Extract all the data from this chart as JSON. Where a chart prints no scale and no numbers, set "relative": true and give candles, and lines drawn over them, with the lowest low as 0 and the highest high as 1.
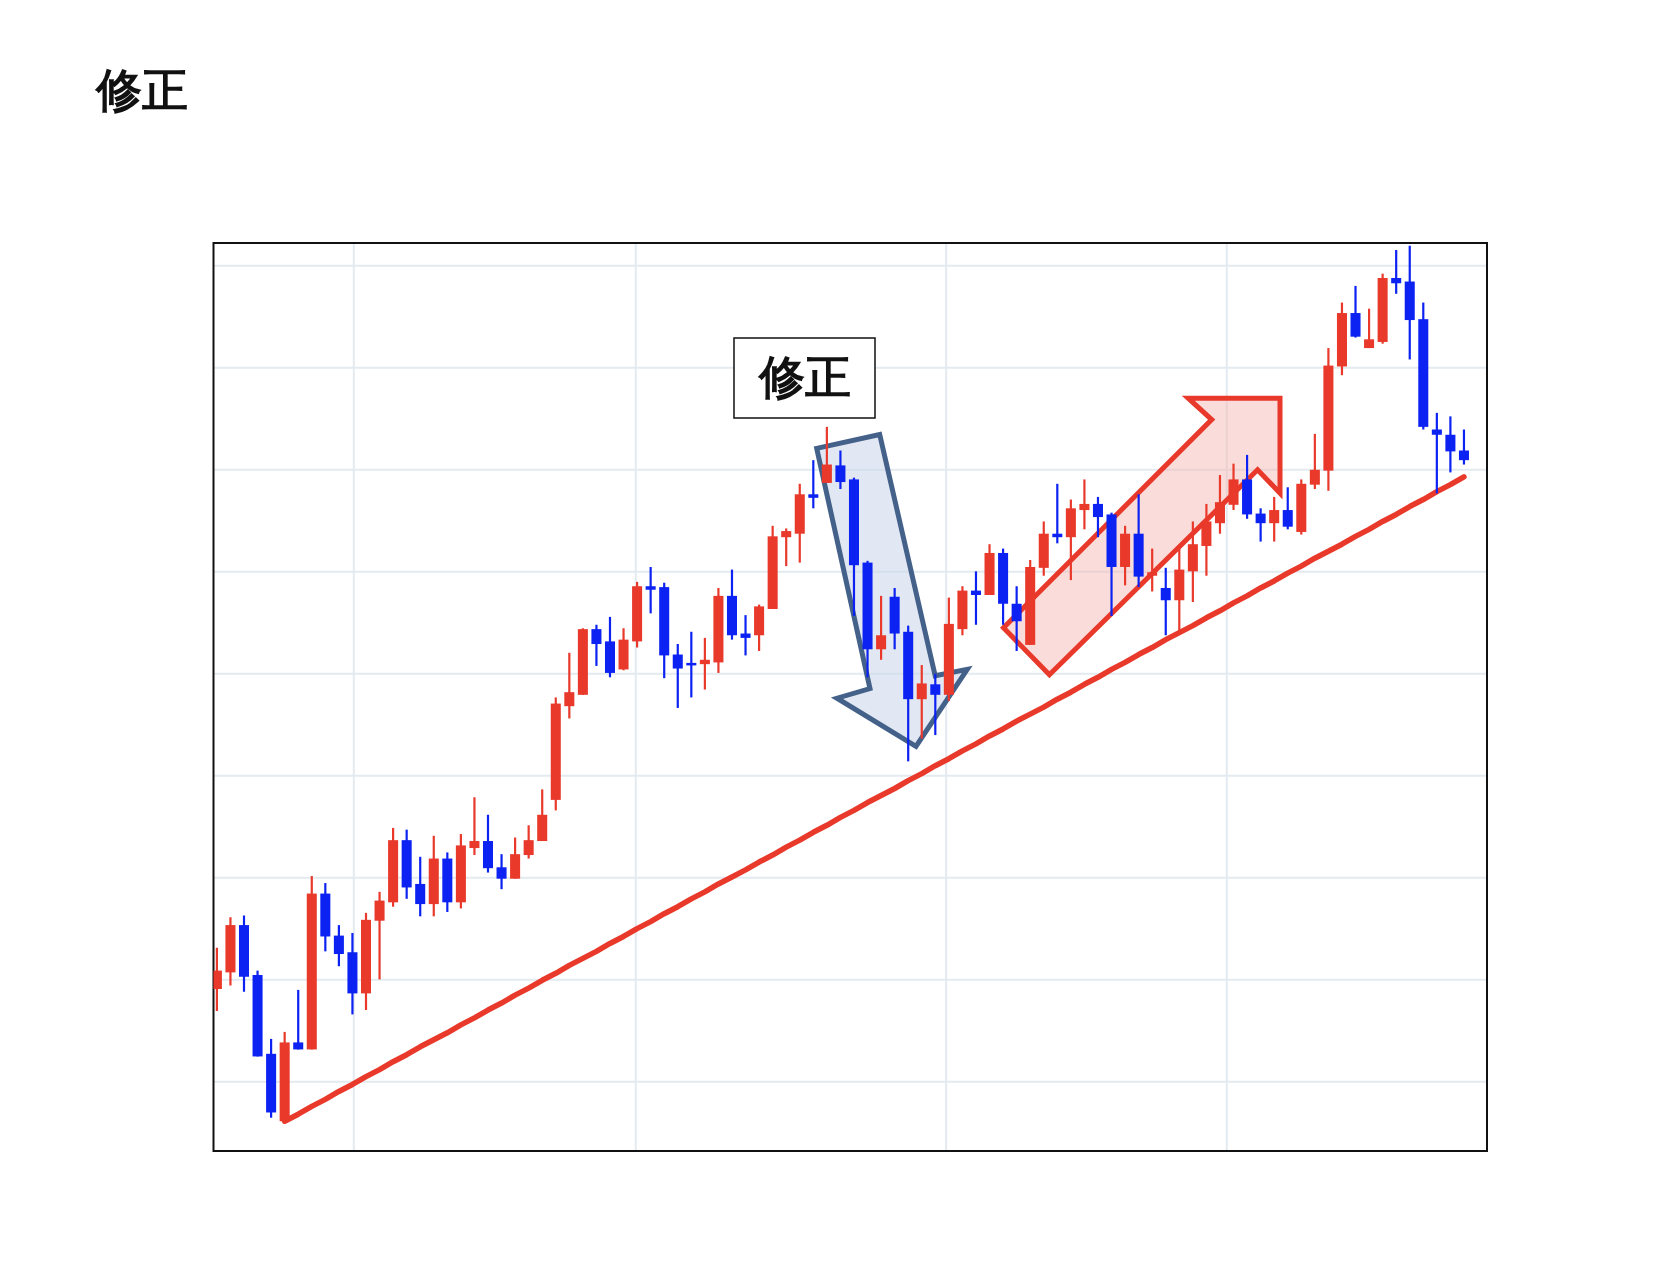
{
  "chart_data": {
    "type": "candlestick",
    "title": "修正",
    "relative": true,
    "grid": true,
    "annotations": [
      "修正"
    ],
    "categories": [
      null,
      null,
      null,
      null,
      null,
      null,
      null,
      null,
      null,
      null,
      null,
      null,
      null,
      null,
      null,
      null,
      null,
      null,
      null,
      null,
      null,
      null,
      null,
      null,
      null,
      null,
      null,
      null,
      null,
      null,
      null,
      null,
      null,
      null,
      null,
      null,
      null,
      null,
      null,
      null,
      null,
      null,
      null,
      null,
      null,
      null,
      null,
      null,
      null,
      null,
      null,
      null,
      null,
      null,
      null,
      null,
      null,
      null,
      null,
      null,
      null,
      null,
      null,
      null,
      null,
      null,
      null,
      null,
      null,
      null,
      null,
      null,
      null,
      null,
      null,
      null,
      null,
      null,
      null,
      null,
      null,
      null,
      null,
      null,
      null,
      null,
      null,
      null,
      null,
      null,
      null,
      null,
      null
    ],
    "ohlc": [
      [
        0.151,
        0.198,
        0.126,
        0.172
      ],
      [
        0.17,
        0.233,
        0.155,
        0.224
      ],
      [
        0.224,
        0.235,
        0.148,
        0.165
      ],
      [
        0.167,
        0.172,
        0.074,
        0.074
      ],
      [
        0.077,
        0.094,
        0.004,
        0.01
      ],
      [
        0,
        0.102,
        0,
        0.09
      ],
      [
        0.09,
        0.15,
        0.082,
        0.082
      ],
      [
        0.082,
        0.28,
        0.082,
        0.26
      ],
      [
        0.26,
        0.272,
        0.194,
        0.211
      ],
      [
        0.212,
        0.224,
        0.177,
        0.191
      ],
      [
        0.193,
        0.215,
        0.122,
        0.146
      ],
      [
        0.146,
        0.238,
        0.127,
        0.23
      ],
      [
        0.229,
        0.262,
        0.162,
        0.252
      ],
      [
        0.25,
        0.335,
        0.245,
        0.321
      ],
      [
        0.321,
        0.333,
        0.254,
        0.267
      ],
      [
        0.271,
        0.302,
        0.234,
        0.248
      ],
      [
        0.248,
        0.326,
        0.234,
        0.3
      ],
      [
        0.3,
        0.307,
        0.239,
        0.25
      ],
      [
        0.25,
        0.328,
        0.243,
        0.315
      ],
      [
        0.312,
        0.37,
        0.304,
        0.32
      ],
      [
        0.32,
        0.35,
        0.284,
        0.289
      ],
      [
        0.29,
        0.305,
        0.265,
        0.277
      ],
      [
        0.277,
        0.324,
        0.277,
        0.305
      ],
      [
        0.304,
        0.338,
        0.3,
        0.321
      ],
      [
        0.32,
        0.379,
        0.32,
        0.35
      ],
      [
        0.367,
        0.484,
        0.355,
        0.477
      ],
      [
        0.474,
        0.535,
        0.46,
        0.49
      ],
      [
        0.487,
        0.563,
        0.487,
        0.562
      ],
      [
        0.562,
        0.567,
        0.52,
        0.545
      ],
      [
        0.548,
        0.576,
        0.507,
        0.512
      ],
      [
        0.516,
        0.563,
        0.515,
        0.55
      ],
      [
        0.548,
        0.616,
        0.541,
        0.611
      ],
      [
        0.611,
        0.633,
        0.58,
        0.607
      ],
      [
        0.61,
        0.615,
        0.506,
        0.532
      ],
      [
        0.533,
        0.545,
        0.472,
        0.517
      ],
      [
        0.523,
        0.559,
        0.484,
        0.521
      ],
      [
        0.522,
        0.552,
        0.493,
        0.527
      ],
      [
        0.524,
        0.609,
        0.512,
        0.6
      ],
      [
        0.6,
        0.63,
        0.55,
        0.555
      ],
      [
        0.557,
        0.578,
        0.532,
        0.552
      ],
      [
        0.555,
        0.59,
        0.537,
        0.588
      ],
      [
        0.585,
        0.68,
        0.585,
        0.668
      ],
      [
        0.667,
        0.677,
        0.634,
        0.674
      ],
      [
        0.671,
        0.728,
        0.638,
        0.716
      ],
      [
        0.716,
        0.755,
        0.7,
        0.712
      ],
      [
        0.729,
        0.793,
        0.729,
        0.75
      ],
      [
        0.749,
        0.766,
        0.722,
        0.73
      ],
      [
        0.733,
        0.735,
        0.577,
        0.635
      ],
      [
        0.638,
        0.64,
        0.507,
        0.539
      ],
      [
        0.539,
        0.6,
        0.527,
        0.555
      ],
      [
        0.599,
        0.609,
        0.539,
        0.557
      ],
      [
        0.559,
        0.566,
        0.411,
        0.482
      ],
      [
        0.482,
        0.521,
        0.437,
        0.5
      ],
      [
        0.499,
        0.511,
        0.441,
        0.487
      ],
      [
        0.487,
        0.598,
        0.48,
        0.568
      ],
      [
        0.562,
        0.611,
        0.555,
        0.606
      ],
      [
        0.606,
        0.628,
        0.567,
        0.601
      ],
      [
        0.601,
        0.659,
        0.601,
        0.649
      ],
      [
        0.649,
        0.654,
        0.567,
        0.591
      ],
      [
        0.591,
        0.611,
        0.537,
        0.571
      ],
      [
        0.544,
        0.641,
        0.544,
        0.633
      ],
      [
        0.632,
        0.685,
        0.623,
        0.671
      ],
      [
        0.671,
        0.728,
        0.66,
        0.667
      ],
      [
        0.667,
        0.71,
        0.618,
        0.7
      ],
      [
        0.698,
        0.733,
        0.676,
        0.705
      ],
      [
        0.705,
        0.713,
        0.667,
        0.69
      ],
      [
        0.693,
        0.695,
        0.577,
        0.633
      ],
      [
        0.633,
        0.68,
        0.612,
        0.671
      ],
      [
        0.671,
        0.716,
        0.61,
        0.622
      ],
      [
        0.623,
        0.654,
        0.605,
        0.627
      ],
      [
        0.609,
        0.632,
        0.555,
        0.595
      ],
      [
        0.595,
        0.654,
        0.557,
        0.63
      ],
      [
        0.628,
        0.685,
        0.593,
        0.659
      ],
      [
        0.657,
        0.705,
        0.623,
        0.685
      ],
      [
        0.683,
        0.738,
        0.671,
        0.707
      ],
      [
        0.704,
        0.751,
        0.698,
        0.733
      ],
      [
        0.733,
        0.761,
        0.688,
        0.693
      ],
      [
        0.694,
        0.7,
        0.662,
        0.683
      ],
      [
        0.683,
        0.713,
        0.662,
        0.698
      ],
      [
        0.698,
        0.724,
        0.676,
        0.679
      ],
      [
        0.673,
        0.733,
        0.67,
        0.728
      ],
      [
        0.727,
        0.785,
        0.722,
        0.744
      ],
      [
        0.743,
        0.883,
        0.72,
        0.863
      ],
      [
        0.862,
        0.935,
        0.852,
        0.923
      ],
      [
        0.923,
        0.954,
        0.895,
        0.896
      ],
      [
        0.883,
        0.928,
        0.883,
        0.893
      ],
      [
        0.89,
        0.968,
        0.888,
        0.963
      ],
      [
        0.963,
        0.995,
        0.945,
        0.957
      ],
      [
        0.959,
        1,
        0.87,
        0.915
      ],
      [
        0.916,
        0.935,
        0.79,
        0.793
      ],
      [
        0.79,
        0.809,
        0.717,
        0.784
      ],
      [
        0.784,
        0.805,
        0.741,
        0.765
      ],
      [
        0.766,
        0.79,
        0.75,
        0.755
      ]
    ],
    "colors": [
      "#e8392b",
      "#e8392b",
      "#0b22f2",
      "#0b22f2",
      "#0b22f2",
      "#e8392b",
      "#0b22f2",
      "#e8392b",
      "#0b22f2",
      "#0b22f2",
      "#0b22f2",
      "#e8392b",
      "#e8392b",
      "#e8392b",
      "#0b22f2",
      "#0b22f2",
      "#e8392b",
      "#0b22f2",
      "#e8392b",
      "#e8392b",
      "#0b22f2",
      "#0b22f2",
      "#e8392b",
      "#e8392b",
      "#e8392b",
      "#e8392b",
      "#e8392b",
      "#e8392b",
      "#0b22f2",
      "#0b22f2",
      "#e8392b",
      "#e8392b",
      "#0b22f2",
      "#0b22f2",
      "#0b22f2",
      "#0b22f2",
      "#e8392b",
      "#e8392b",
      "#0b22f2",
      "#0b22f2",
      "#e8392b",
      "#e8392b",
      "#e8392b",
      "#e8392b",
      "#0b22f2",
      "#e8392b",
      "#0b22f2",
      "#0b22f2",
      "#0b22f2",
      "#e8392b",
      "#0b22f2",
      "#0b22f2",
      "#e8392b",
      "#0b22f2",
      "#e8392b",
      "#e8392b",
      "#0b22f2",
      "#e8392b",
      "#0b22f2",
      "#0b22f2",
      "#e8392b",
      "#e8392b",
      "#0b22f2",
      "#e8392b",
      "#e8392b",
      "#0b22f2",
      "#0b22f2",
      "#e8392b",
      "#0b22f2",
      "#e8392b",
      "#0b22f2",
      "#e8392b",
      "#e8392b",
      "#e8392b",
      "#e8392b",
      "#e8392b",
      "#0b22f2",
      "#0b22f2",
      "#e8392b",
      "#0b22f2",
      "#e8392b",
      "#e8392b",
      "#e8392b",
      "#e8392b",
      "#0b22f2",
      "#e8392b",
      "#e8392b",
      "#0b22f2",
      "#0b22f2",
      "#0b22f2",
      "#0b22f2",
      "#0b22f2",
      "#0b22f2"
    ],
    "series": [
      {
        "type": "line",
        "color": "#e8392b",
        "values": [
          null,
          null,
          null,
          null,
          null,
          0,
          0.008,
          0.017,
          0.025,
          0.034,
          0.042,
          0.051,
          0.059,
          0.068,
          0.076,
          0.085,
          0.093,
          0.101,
          0.11,
          0.118,
          0.127,
          0.135,
          0.144,
          0.152,
          0.161,
          0.169,
          0.178,
          0.186,
          0.194,
          0.203,
          0.211,
          0.22,
          0.228,
          0.237,
          0.245,
          0.254,
          0.262,
          0.271,
          0.279,
          0.287,
          0.296,
          0.304,
          0.313,
          0.321,
          0.33,
          0.338,
          0.347,
          0.355,
          0.364,
          0.372,
          0.38,
          0.389,
          0.397,
          0.406,
          0.414,
          0.423,
          0.431,
          0.44,
          0.448,
          0.457,
          0.465,
          0.473,
          0.482,
          0.49,
          0.499,
          0.507,
          0.516,
          0.524,
          0.533,
          0.541,
          0.55,
          0.558,
          0.566,
          0.575,
          0.583,
          0.592,
          0.6,
          0.609,
          0.617,
          0.626,
          0.634,
          0.643,
          0.651,
          0.659,
          0.668,
          0.676,
          0.685,
          0.693,
          0.702,
          0.71,
          0.719,
          0.727,
          0.736
        ]
      }
    ]
  }
}
